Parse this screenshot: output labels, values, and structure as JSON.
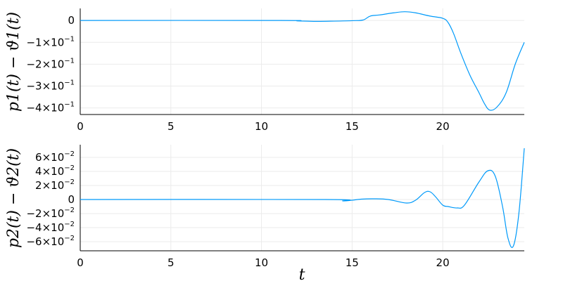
{
  "colors": {
    "series": "#009AFA",
    "grid": "#EBEBEB",
    "axis": "#000000"
  },
  "chart_data": [
    {
      "type": "line",
      "panel": "top",
      "title": "",
      "xlabel": "",
      "ylabel": "p1(t) − ϑ1(t)",
      "xlim": [
        0,
        24.5
      ],
      "ylim": [
        -0.43,
        0.055
      ],
      "grid": true,
      "legend": "none",
      "x_ticks": [
        {
          "value": 0,
          "label": "0"
        },
        {
          "value": 5,
          "label": "5"
        },
        {
          "value": 10,
          "label": "10"
        },
        {
          "value": 15,
          "label": "15"
        },
        {
          "value": 20,
          "label": "20"
        }
      ],
      "y_ticks": [
        {
          "value": 0,
          "label": "0",
          "exp": ""
        },
        {
          "value": -0.1,
          "label": "−1×10",
          "exp": "−1"
        },
        {
          "value": -0.2,
          "label": "−2×10",
          "exp": "−1"
        },
        {
          "value": -0.3,
          "label": "−3×10",
          "exp": "−1"
        },
        {
          "value": -0.4,
          "label": "−4×10",
          "exp": "−1"
        }
      ],
      "series": [
        {
          "x": [
            0,
            11,
            12,
            13,
            14,
            15,
            15.6,
            16,
            16.5,
            17.3,
            17.9,
            18.5,
            19.3,
            20,
            20.3,
            20.6,
            21,
            21.5,
            22,
            22.3,
            22.6,
            23,
            23.5,
            24,
            24.5
          ],
          "y": [
            0,
            0,
            -0.002,
            -0.004,
            -0.003,
            -0.001,
            0.002,
            0.02,
            0.025,
            0.035,
            0.04,
            0.035,
            0.02,
            0.01,
            -0.01,
            -0.06,
            -0.15,
            -0.25,
            -0.33,
            -0.38,
            -0.41,
            -0.395,
            -0.33,
            -0.2,
            -0.1
          ]
        }
      ]
    },
    {
      "type": "line",
      "panel": "bottom",
      "title": "",
      "xlabel": "t",
      "ylabel": "p2(t) − ϑ2(t)",
      "xlim": [
        0,
        24.5
      ],
      "ylim": [
        -0.073,
        0.078
      ],
      "grid": true,
      "legend": "none",
      "x_ticks": [
        {
          "value": 0,
          "label": "0"
        },
        {
          "value": 5,
          "label": "5"
        },
        {
          "value": 10,
          "label": "10"
        },
        {
          "value": 15,
          "label": "15"
        },
        {
          "value": 20,
          "label": "20"
        }
      ],
      "y_ticks": [
        {
          "value": 0.06,
          "label": "6×10",
          "exp": "−2"
        },
        {
          "value": 0.04,
          "label": "4×10",
          "exp": "−2"
        },
        {
          "value": 0.02,
          "label": "2×10",
          "exp": "−2"
        },
        {
          "value": 0,
          "label": "0",
          "exp": ""
        },
        {
          "value": -0.02,
          "label": "−2×10",
          "exp": "−2"
        },
        {
          "value": -0.04,
          "label": "−4×10",
          "exp": "−2"
        },
        {
          "value": -0.06,
          "label": "−6×10",
          "exp": "−2"
        }
      ],
      "series": [
        {
          "x": [
            0,
            13.5,
            14.5,
            15,
            15.5,
            16.2,
            17,
            18,
            18.5,
            19,
            19.3,
            19.6,
            20,
            20.3,
            20.8,
            21.2,
            22,
            22.5,
            22.9,
            23.3,
            23.6,
            23.9,
            24.2,
            24.5
          ],
          "y": [
            0,
            0,
            -0.002,
            -0.001,
            0.0005,
            0.001,
            0,
            -0.005,
            -0.001,
            0.01,
            0.011,
            0.004,
            -0.008,
            -0.01,
            -0.012,
            -0.008,
            0.025,
            0.041,
            0.033,
            -0.01,
            -0.055,
            -0.066,
            -0.02,
            0.073
          ]
        }
      ]
    }
  ]
}
